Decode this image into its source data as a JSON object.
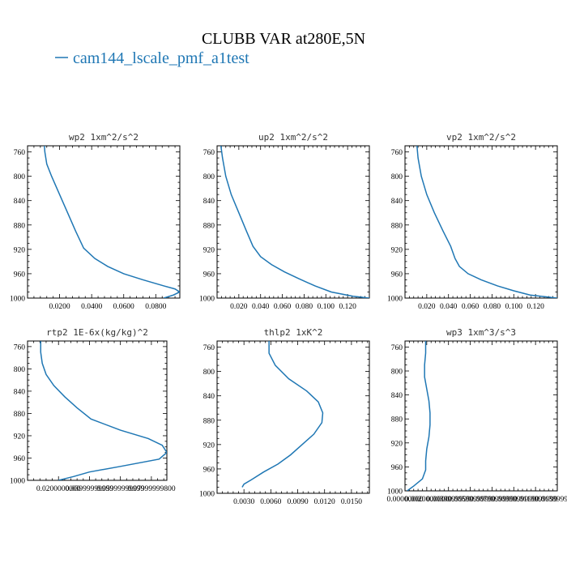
{
  "figure": {
    "title": "CLUBB VAR at280E,5N",
    "legend": "cam144_lscale_pmf_a1test",
    "legend_placement": "top-left",
    "series_color": "#1f77b4"
  },
  "chart_data": [
    {
      "type": "line",
      "title": "wp2   1xm^2/s^2",
      "xlim": [
        0.0,
        0.095
      ],
      "ylim": [
        1000,
        750
      ],
      "xticks": [
        0.02,
        0.04,
        0.06,
        0.08
      ],
      "xtick_labels": [
        "0.0200",
        "0.0400",
        "0.0600",
        "0.0800"
      ],
      "yticks": [
        760,
        800,
        840,
        880,
        920,
        960,
        1000
      ],
      "ytick_labels": [
        "760",
        "800",
        "840",
        "880",
        "920",
        "960",
        "1000"
      ],
      "series": [
        {
          "x": [
            0.0105,
            0.0108,
            0.012,
            0.015,
            0.02,
            0.025,
            0.03,
            0.035,
            0.042,
            0.05,
            0.06,
            0.072,
            0.085,
            0.092,
            0.095,
            0.091,
            0.085
          ],
          "y": [
            750,
            760,
            780,
            800,
            830,
            860,
            890,
            918,
            935,
            948,
            960,
            970,
            980,
            985,
            990,
            995,
            1000
          ]
        }
      ]
    },
    {
      "type": "line",
      "title": "up2   1xm^2/s^2",
      "xlim": [
        0.0,
        0.14
      ],
      "ylim": [
        1000,
        750
      ],
      "xticks": [
        0.02,
        0.04,
        0.06,
        0.08,
        0.1,
        0.12
      ],
      "xtick_labels": [
        "0.020",
        "0.040",
        "0.060",
        "0.080",
        "0.100",
        "0.120"
      ],
      "yticks": [
        760,
        800,
        840,
        880,
        920,
        960,
        1000
      ],
      "ytick_labels": [
        "760",
        "800",
        "840",
        "880",
        "920",
        "960",
        "1000"
      ],
      "series": [
        {
          "x": [
            0.0035,
            0.005,
            0.008,
            0.013,
            0.02,
            0.027,
            0.033,
            0.04,
            0.05,
            0.062,
            0.075,
            0.09,
            0.105,
            0.125,
            0.14
          ],
          "y": [
            750,
            770,
            800,
            830,
            860,
            890,
            915,
            932,
            945,
            957,
            968,
            980,
            990,
            997,
            1000
          ]
        }
      ]
    },
    {
      "type": "line",
      "title": "vp2   1xm^2/s^2",
      "xlim": [
        0.0,
        0.14
      ],
      "ylim": [
        1000,
        750
      ],
      "xticks": [
        0.02,
        0.04,
        0.06,
        0.08,
        0.1,
        0.12
      ],
      "xtick_labels": [
        "0.020",
        "0.040",
        "0.060",
        "0.080",
        "0.100",
        "0.120"
      ],
      "yticks": [
        760,
        800,
        840,
        880,
        920,
        960,
        1000
      ],
      "ytick_labels": [
        "760",
        "800",
        "840",
        "880",
        "920",
        "960",
        "1000"
      ],
      "series": [
        {
          "x": [
            0.011,
            0.012,
            0.015,
            0.02,
            0.027,
            0.035,
            0.042,
            0.046,
            0.05,
            0.058,
            0.07,
            0.085,
            0.1,
            0.115,
            0.14
          ],
          "y": [
            750,
            770,
            800,
            830,
            860,
            890,
            915,
            935,
            948,
            960,
            970,
            980,
            988,
            995,
            1000
          ]
        }
      ]
    },
    {
      "type": "line",
      "title": "rtp2   1E-6x(kg/kg)^2",
      "xlim": [
        0.0,
        0.09
      ],
      "ylim": [
        1000,
        750
      ],
      "xticks": [
        0.02,
        0.04,
        0.06,
        0.08
      ],
      "xtick_labels": [
        "0.0200000000",
        "0.03999999999",
        "0.05999999999",
        "0.07999999800"
      ],
      "yticks": [
        760,
        800,
        840,
        880,
        920,
        960,
        1000
      ],
      "ytick_labels": [
        "760",
        "800",
        "840",
        "880",
        "920",
        "960",
        "1000"
      ],
      "series": [
        {
          "x": [
            0.0085,
            0.0085,
            0.0095,
            0.012,
            0.017,
            0.024,
            0.032,
            0.041,
            0.06,
            0.078,
            0.087,
            0.09,
            0.085,
            0.06,
            0.04,
            0.03,
            0.02
          ],
          "y": [
            750,
            770,
            790,
            810,
            830,
            850,
            870,
            890,
            910,
            925,
            937,
            950,
            962,
            975,
            985,
            993,
            1000
          ]
        }
      ]
    },
    {
      "type": "line",
      "title": "thlp2   1xK^2",
      "xlim": [
        0.0,
        0.017
      ],
      "ylim": [
        1000,
        750
      ],
      "xticks": [
        0.003,
        0.006,
        0.009,
        0.012,
        0.015
      ],
      "xtick_labels": [
        "0.0030",
        "0.0060",
        "0.0090",
        "0.0120",
        "0.0150"
      ],
      "yticks": [
        760,
        800,
        840,
        880,
        920,
        960,
        1000
      ],
      "ytick_labels": [
        "760",
        "800",
        "840",
        "880",
        "920",
        "960",
        "1000"
      ],
      "series": [
        {
          "x": [
            0.0058,
            0.0058,
            0.0065,
            0.008,
            0.01,
            0.0113,
            0.0118,
            0.0117,
            0.0108,
            0.0095,
            0.0082,
            0.0068,
            0.0052,
            0.0038,
            0.003,
            0.0028
          ],
          "y": [
            750,
            770,
            790,
            812,
            832,
            850,
            868,
            884,
            903,
            920,
            937,
            952,
            965,
            978,
            985,
            990
          ]
        }
      ]
    },
    {
      "type": "line",
      "title": "wp3   1xm^3/s^3",
      "xlim": [
        0.0,
        0.014
      ],
      "ylim": [
        1000,
        750
      ],
      "xticks": [
        0.0,
        0.002,
        0.004,
        0.006,
        0.008,
        0.01,
        0.012,
        0.014
      ],
      "xtick_labels": [
        "0.00000000",
        "0.0020000000",
        "0.0039999999",
        "0.0059999999",
        "0.0079999999",
        "0.0099999999",
        "0.0119999999",
        "0.0139999994"
      ],
      "yticks": [
        760,
        800,
        840,
        880,
        920,
        960,
        1000
      ],
      "ytick_labels": [
        "760",
        "800",
        "840",
        "880",
        "920",
        "960",
        "1000"
      ],
      "series": [
        {
          "x": [
            0.0019,
            0.0019,
            0.0018,
            0.0018,
            0.002,
            0.0022,
            0.0023,
            0.0023,
            0.0022,
            0.002,
            0.0019,
            0.0019,
            0.0016,
            0.0008,
            0.0002
          ],
          "y": [
            750,
            770,
            790,
            810,
            830,
            850,
            870,
            890,
            910,
            930,
            950,
            965,
            980,
            992,
            1000
          ]
        }
      ]
    }
  ]
}
